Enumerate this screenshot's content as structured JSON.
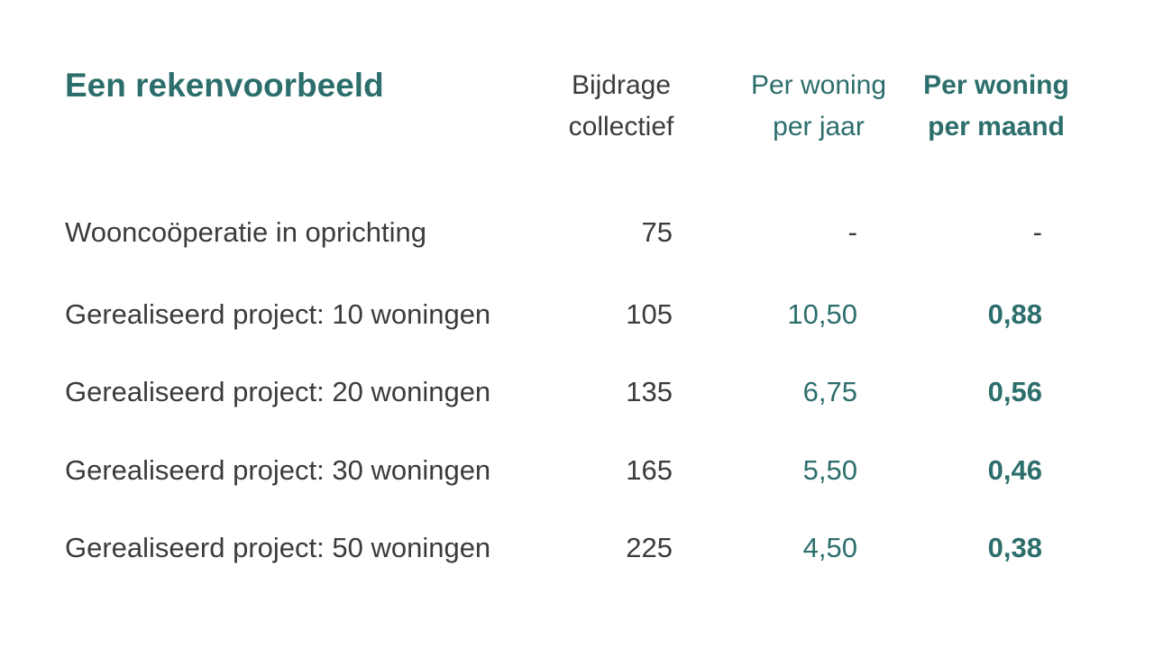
{
  "title": "Een rekenvoorbeeld",
  "headers": {
    "contribution": [
      "Bijdrage",
      "collectief"
    ],
    "per_year": [
      "Per woning",
      "per jaar"
    ],
    "per_month": [
      "Per woning",
      "per maand"
    ]
  },
  "rows": [
    {
      "label": "Wooncoöperatie in oprichting",
      "contribution": "75",
      "per_year": "-",
      "per_month": "-"
    },
    {
      "label": "Gerealiseerd project: 10 woningen",
      "contribution": "105",
      "per_year": "10,50",
      "per_month": "0,88"
    },
    {
      "label": "Gerealiseerd project: 20 woningen",
      "contribution": "135",
      "per_year": "6,75",
      "per_month": "0,56"
    },
    {
      "label": "Gerealiseerd project: 30 woningen",
      "contribution": "165",
      "per_year": "5,50",
      "per_month": "0,46"
    },
    {
      "label": "Gerealiseerd project: 50 woningen",
      "contribution": "225",
      "per_year": "4,50",
      "per_month": "0,38"
    }
  ],
  "colors": {
    "accent": "#2c6e6c",
    "text": "#3b3b3b",
    "background": "#ffffff"
  }
}
